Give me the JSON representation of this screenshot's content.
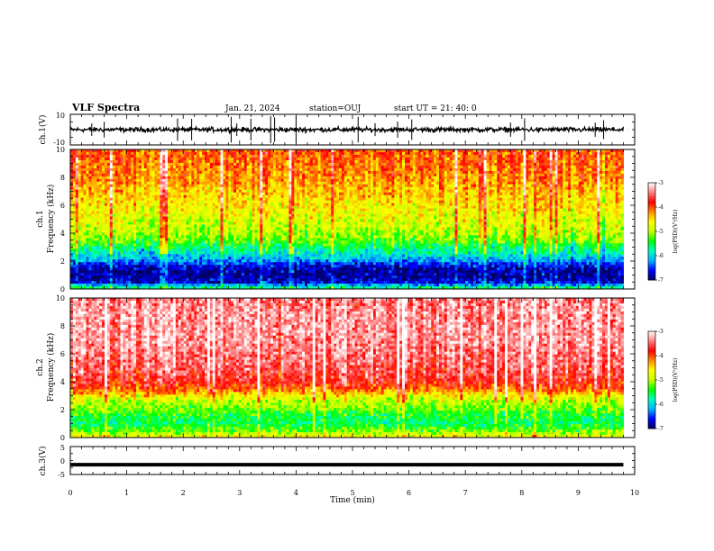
{
  "header": {
    "title": "VLF Spectra",
    "date": "Jan. 21, 2024",
    "station": "station=OUJ",
    "start": "start  UT =  21: 40: 0"
  },
  "colors": {
    "background": "#ffffff",
    "axes": "#000000",
    "colormap": [
      "#000060",
      "#0000ff",
      "#00b4ff",
      "#00ffc0",
      "#00ff00",
      "#c8ff00",
      "#ffff00",
      "#ff8c00",
      "#ff0000",
      "#ff8080",
      "#ffffff"
    ]
  },
  "chart_data": [
    {
      "type": "line",
      "name": "ch1-waveform",
      "ylabel": "ch.1(V)",
      "ylim": [
        -10,
        10
      ],
      "yticks": [
        "10",
        "-10"
      ],
      "xlim": [
        0,
        10
      ],
      "level": 0,
      "spike_times": [
        0.38,
        0.6,
        1.9,
        2.15,
        2.85,
        2.95,
        3.2,
        3.55,
        3.62,
        4.0,
        5.1,
        5.4,
        5.8,
        6.05,
        7.8,
        8.05,
        9.3,
        9.45
      ]
    },
    {
      "type": "heatmap",
      "name": "ch1-spectrogram",
      "ylabel": "ch.1",
      "ylabel2": "Frequency  (kHz)",
      "ylim": [
        0,
        10
      ],
      "yticks": [
        "0",
        "2",
        "4",
        "6",
        "8",
        "10"
      ],
      "xlim": [
        0,
        10
      ],
      "profile_freq_khz": [
        0,
        0.5,
        1,
        1.5,
        2,
        2.5,
        3,
        3.5,
        4,
        5,
        6,
        7,
        8,
        9,
        10
      ],
      "profile_log_psd": [
        -5.5,
        -6.7,
        -6.9,
        -6.8,
        -6.3,
        -5.9,
        -5.6,
        -5.2,
        -5.0,
        -4.8,
        -4.6,
        -4.4,
        -4.2,
        -4.1,
        -4.0
      ],
      "colorbar": {
        "label": "log(PSD)(V²/Hz)",
        "range": [
          -7,
          -3
        ],
        "ticks": [
          "-3",
          "-4",
          "-5",
          "-6",
          "-7"
        ]
      }
    },
    {
      "type": "heatmap",
      "name": "ch2-spectrogram",
      "ylabel": "ch.2",
      "ylabel2": "Frequency  (kHz)",
      "ylim": [
        0,
        10
      ],
      "yticks": [
        "0",
        "2",
        "4",
        "6",
        "8",
        "10"
      ],
      "xlim": [
        0,
        10
      ],
      "profile_freq_khz": [
        0,
        0.5,
        1,
        1.5,
        2,
        2.5,
        3,
        3.5,
        4,
        5,
        6,
        7,
        8,
        9,
        10
      ],
      "profile_log_psd": [
        -4.6,
        -5.2,
        -5.6,
        -5.5,
        -5.2,
        -5.0,
        -4.6,
        -4.0,
        -3.7,
        -3.5,
        -3.4,
        -3.3,
        -3.3,
        -3.3,
        -3.4
      ],
      "colorbar": {
        "label": "log(PSD)(V²/Hz)",
        "range": [
          -7,
          -3
        ],
        "ticks": [
          "-3",
          "-4",
          "-5",
          "-6",
          "-7"
        ]
      }
    },
    {
      "type": "line",
      "name": "ch3-waveform",
      "ylabel": "ch.3(V)",
      "ylim": [
        -5,
        5
      ],
      "yticks": [
        "5",
        "0",
        "-5"
      ],
      "xlim": [
        0,
        10
      ],
      "level": -1.5
    }
  ],
  "xaxis": {
    "label": "Time  (min)",
    "ticks": [
      "0",
      "1",
      "2",
      "3",
      "4",
      "5",
      "6",
      "7",
      "8",
      "9",
      "10"
    ],
    "data_end": 9.8
  }
}
